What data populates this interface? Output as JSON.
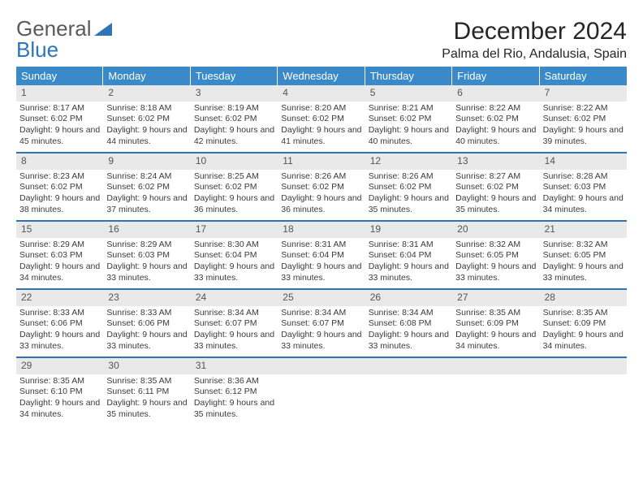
{
  "brand": {
    "part1": "General",
    "part2": "Blue"
  },
  "title": "December 2024",
  "location": "Palma del Rio, Andalusia, Spain",
  "colors": {
    "header_bg": "#3a8ac9",
    "header_text": "#ffffff",
    "daynum_bg": "#e9e9e9",
    "week_border": "#2f75b5",
    "logo_gray": "#5a5a5a",
    "logo_blue": "#2f75b5"
  },
  "typography": {
    "title_fontsize": 30,
    "location_fontsize": 16,
    "dow_fontsize": 13,
    "daynum_fontsize": 12,
    "body_fontsize": 10.5
  },
  "dow": [
    "Sunday",
    "Monday",
    "Tuesday",
    "Wednesday",
    "Thursday",
    "Friday",
    "Saturday"
  ],
  "days": [
    {
      "n": "1",
      "sr": "Sunrise: 8:17 AM",
      "ss": "Sunset: 6:02 PM",
      "dl": "Daylight: 9 hours and 45 minutes."
    },
    {
      "n": "2",
      "sr": "Sunrise: 8:18 AM",
      "ss": "Sunset: 6:02 PM",
      "dl": "Daylight: 9 hours and 44 minutes."
    },
    {
      "n": "3",
      "sr": "Sunrise: 8:19 AM",
      "ss": "Sunset: 6:02 PM",
      "dl": "Daylight: 9 hours and 42 minutes."
    },
    {
      "n": "4",
      "sr": "Sunrise: 8:20 AM",
      "ss": "Sunset: 6:02 PM",
      "dl": "Daylight: 9 hours and 41 minutes."
    },
    {
      "n": "5",
      "sr": "Sunrise: 8:21 AM",
      "ss": "Sunset: 6:02 PM",
      "dl": "Daylight: 9 hours and 40 minutes."
    },
    {
      "n": "6",
      "sr": "Sunrise: 8:22 AM",
      "ss": "Sunset: 6:02 PM",
      "dl": "Daylight: 9 hours and 40 minutes."
    },
    {
      "n": "7",
      "sr": "Sunrise: 8:22 AM",
      "ss": "Sunset: 6:02 PM",
      "dl": "Daylight: 9 hours and 39 minutes."
    },
    {
      "n": "8",
      "sr": "Sunrise: 8:23 AM",
      "ss": "Sunset: 6:02 PM",
      "dl": "Daylight: 9 hours and 38 minutes."
    },
    {
      "n": "9",
      "sr": "Sunrise: 8:24 AM",
      "ss": "Sunset: 6:02 PM",
      "dl": "Daylight: 9 hours and 37 minutes."
    },
    {
      "n": "10",
      "sr": "Sunrise: 8:25 AM",
      "ss": "Sunset: 6:02 PM",
      "dl": "Daylight: 9 hours and 36 minutes."
    },
    {
      "n": "11",
      "sr": "Sunrise: 8:26 AM",
      "ss": "Sunset: 6:02 PM",
      "dl": "Daylight: 9 hours and 36 minutes."
    },
    {
      "n": "12",
      "sr": "Sunrise: 8:26 AM",
      "ss": "Sunset: 6:02 PM",
      "dl": "Daylight: 9 hours and 35 minutes."
    },
    {
      "n": "13",
      "sr": "Sunrise: 8:27 AM",
      "ss": "Sunset: 6:02 PM",
      "dl": "Daylight: 9 hours and 35 minutes."
    },
    {
      "n": "14",
      "sr": "Sunrise: 8:28 AM",
      "ss": "Sunset: 6:03 PM",
      "dl": "Daylight: 9 hours and 34 minutes."
    },
    {
      "n": "15",
      "sr": "Sunrise: 8:29 AM",
      "ss": "Sunset: 6:03 PM",
      "dl": "Daylight: 9 hours and 34 minutes."
    },
    {
      "n": "16",
      "sr": "Sunrise: 8:29 AM",
      "ss": "Sunset: 6:03 PM",
      "dl": "Daylight: 9 hours and 33 minutes."
    },
    {
      "n": "17",
      "sr": "Sunrise: 8:30 AM",
      "ss": "Sunset: 6:04 PM",
      "dl": "Daylight: 9 hours and 33 minutes."
    },
    {
      "n": "18",
      "sr": "Sunrise: 8:31 AM",
      "ss": "Sunset: 6:04 PM",
      "dl": "Daylight: 9 hours and 33 minutes."
    },
    {
      "n": "19",
      "sr": "Sunrise: 8:31 AM",
      "ss": "Sunset: 6:04 PM",
      "dl": "Daylight: 9 hours and 33 minutes."
    },
    {
      "n": "20",
      "sr": "Sunrise: 8:32 AM",
      "ss": "Sunset: 6:05 PM",
      "dl": "Daylight: 9 hours and 33 minutes."
    },
    {
      "n": "21",
      "sr": "Sunrise: 8:32 AM",
      "ss": "Sunset: 6:05 PM",
      "dl": "Daylight: 9 hours and 33 minutes."
    },
    {
      "n": "22",
      "sr": "Sunrise: 8:33 AM",
      "ss": "Sunset: 6:06 PM",
      "dl": "Daylight: 9 hours and 33 minutes."
    },
    {
      "n": "23",
      "sr": "Sunrise: 8:33 AM",
      "ss": "Sunset: 6:06 PM",
      "dl": "Daylight: 9 hours and 33 minutes."
    },
    {
      "n": "24",
      "sr": "Sunrise: 8:34 AM",
      "ss": "Sunset: 6:07 PM",
      "dl": "Daylight: 9 hours and 33 minutes."
    },
    {
      "n": "25",
      "sr": "Sunrise: 8:34 AM",
      "ss": "Sunset: 6:07 PM",
      "dl": "Daylight: 9 hours and 33 minutes."
    },
    {
      "n": "26",
      "sr": "Sunrise: 8:34 AM",
      "ss": "Sunset: 6:08 PM",
      "dl": "Daylight: 9 hours and 33 minutes."
    },
    {
      "n": "27",
      "sr": "Sunrise: 8:35 AM",
      "ss": "Sunset: 6:09 PM",
      "dl": "Daylight: 9 hours and 34 minutes."
    },
    {
      "n": "28",
      "sr": "Sunrise: 8:35 AM",
      "ss": "Sunset: 6:09 PM",
      "dl": "Daylight: 9 hours and 34 minutes."
    },
    {
      "n": "29",
      "sr": "Sunrise: 8:35 AM",
      "ss": "Sunset: 6:10 PM",
      "dl": "Daylight: 9 hours and 34 minutes."
    },
    {
      "n": "30",
      "sr": "Sunrise: 8:35 AM",
      "ss": "Sunset: 6:11 PM",
      "dl": "Daylight: 9 hours and 35 minutes."
    },
    {
      "n": "31",
      "sr": "Sunrise: 8:36 AM",
      "ss": "Sunset: 6:12 PM",
      "dl": "Daylight: 9 hours and 35 minutes."
    }
  ]
}
